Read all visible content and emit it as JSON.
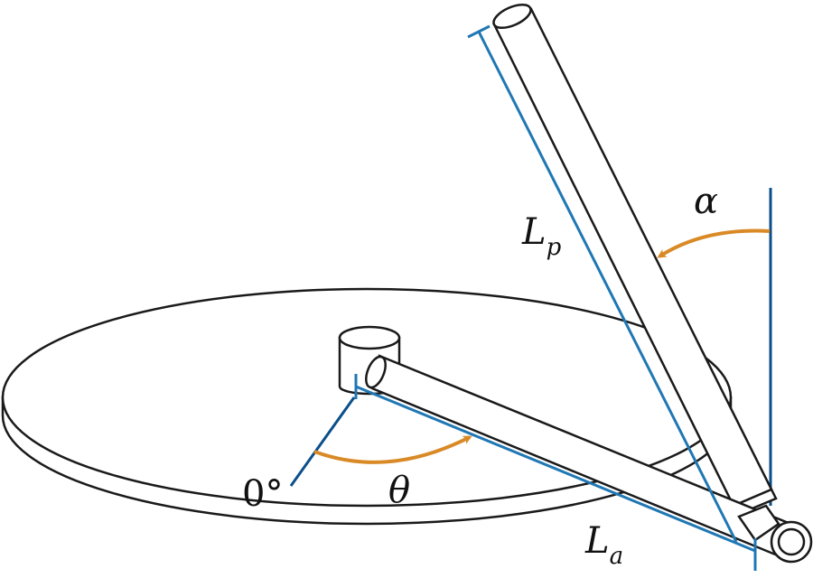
{
  "labels": {
    "alpha": "α",
    "theta": "θ",
    "zero_angle": "0°",
    "pendulum_length": {
      "main": "L",
      "subscript": "p"
    },
    "arm_length": {
      "main": "L",
      "subscript": "a"
    }
  },
  "colors": {
    "outline": "#1a1a1a",
    "dimension_line": "#1f77b4",
    "reference_line": "#0b4f8a",
    "angle_arrow": "#d98a26",
    "fill": "#ffffff"
  }
}
